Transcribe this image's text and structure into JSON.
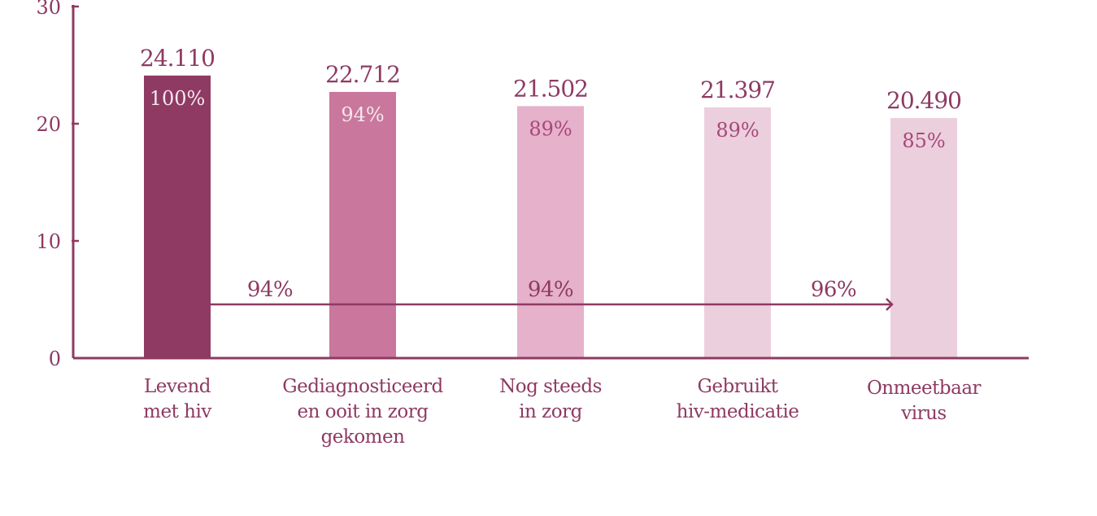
{
  "chart_data": {
    "type": "bar",
    "categories": [
      "Levend\nmet hiv",
      "Gediagnosticeerd\nen ooit in zorg\ngekomen",
      "Nog steeds\nin zorg",
      "Gebruikt\nhiv-medicatie",
      "Onmeetbaar\nvirus"
    ],
    "values": [
      24.11,
      22.712,
      21.502,
      21.397,
      20.49
    ],
    "value_labels": [
      "24.110",
      "22.712",
      "21.502",
      "21.397",
      "20.490"
    ],
    "percent_labels": [
      "100%",
      "94%",
      "89%",
      "89%",
      "85%"
    ],
    "bar_colors": [
      "#8e3a63",
      "#c9779c",
      "#e6b1cb",
      "#eccfdd",
      "#eccfdd"
    ],
    "percent_label_colors": [
      "#f6e6ee",
      "#f6e6ee",
      "#a8487a",
      "#a8487a",
      "#a8487a"
    ],
    "axis_color": "#8e3a63",
    "yticks": [
      "0",
      "10",
      "20",
      "30"
    ],
    "ylim": [
      0,
      30
    ],
    "arrow_labels": [
      "94%",
      "94%",
      "96%"
    ],
    "title": "",
    "xlabel": "",
    "ylabel": ""
  }
}
